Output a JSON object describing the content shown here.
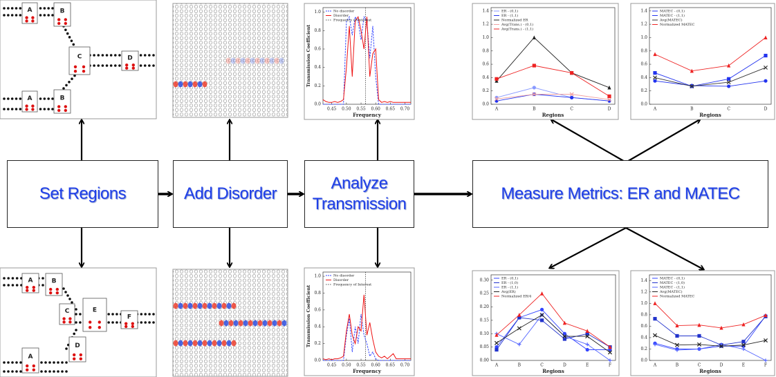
{
  "flow": {
    "boxes": [
      "Set Regions",
      "Add Disorder",
      "Analyze Transmission",
      "Measure Metrics: ER and MATEC"
    ]
  },
  "region_maps": [
    {
      "labels": [
        "A",
        "B",
        "C",
        "D",
        "A",
        "B"
      ]
    },
    {
      "labels": [
        "A",
        "B",
        "C",
        "E",
        "F",
        "A",
        "D"
      ]
    }
  ],
  "charts": [
    {
      "type": "line",
      "y_label": "Transmission Coefficient",
      "x_label": "Frequency",
      "x": [
        0.42,
        0.43,
        0.44,
        0.45,
        0.46,
        0.47,
        0.48,
        0.49,
        0.5,
        0.51,
        0.52,
        0.53,
        0.54,
        0.55,
        0.56,
        0.57,
        0.58,
        0.59,
        0.6,
        0.61,
        0.62,
        0.63,
        0.64,
        0.65,
        0.66,
        0.67,
        0.68,
        0.69,
        0.7,
        0.71,
        0.72
      ],
      "xlim": [
        0.42,
        0.72
      ],
      "xticks": [
        0.45,
        {
          "value": 0.5,
          "label": "0.50"
        },
        0.55,
        {
          "value": 0.6,
          "label": "0.60"
        },
        0.65,
        {
          "value": 0.7,
          "label": "0.70"
        }
      ],
      "ylim": [
        0,
        1.05
      ],
      "yticks": [
        {
          "value": 0,
          "label": "0.0"
        },
        0.2,
        0.4,
        0.6,
        0.8,
        {
          "value": 1,
          "label": "1.0"
        }
      ],
      "frequency_of_interest": 0.565,
      "frequency_label": "Frequency of Interest",
      "series": [
        {
          "name": "No disorder",
          "color": "#3344ff",
          "style": "dashed",
          "values": [
            0,
            0,
            0,
            0,
            0,
            0,
            0,
            0,
            0.9,
            0.95,
            0.75,
            0.95,
            0.9,
            0.7,
            0.95,
            0.9,
            0.5,
            0.85,
            0.3,
            0,
            0,
            0,
            0,
            0,
            0,
            0,
            0,
            0,
            0,
            0,
            0
          ]
        },
        {
          "name": "Disorder",
          "color": "#ee1111",
          "style": "solid",
          "values": [
            0.05,
            0.03,
            0.02,
            0.02,
            0.03,
            0.02,
            0.03,
            0.05,
            0.4,
            0.85,
            0.3,
            0.9,
            0.95,
            0.8,
            0.6,
            0.95,
            0.3,
            0.55,
            0.6,
            0.05,
            0.02,
            0.03,
            0.02,
            0.03,
            0.02,
            0.02,
            0.02,
            0.02,
            0.02,
            0.02,
            0.02
          ]
        }
      ]
    },
    {
      "type": "line",
      "y_label": "Transmission Coefficient",
      "x_label": "Frequency",
      "x": [
        0.42,
        0.43,
        0.44,
        0.45,
        0.46,
        0.47,
        0.48,
        0.49,
        0.5,
        0.51,
        0.52,
        0.53,
        0.54,
        0.55,
        0.56,
        0.57,
        0.58,
        0.59,
        0.6,
        0.61,
        0.62,
        0.63,
        0.64,
        0.65,
        0.66,
        0.67,
        0.68,
        0.69,
        0.7,
        0.71,
        0.72
      ],
      "xlim": [
        0.42,
        0.72
      ],
      "xticks": [
        0.45,
        {
          "value": 0.5,
          "label": "0.50"
        },
        0.55,
        {
          "value": 0.6,
          "label": "0.60"
        },
        0.65,
        {
          "value": 0.7,
          "label": "0.70"
        }
      ],
      "ylim": [
        0,
        1.05
      ],
      "yticks": [
        {
          "value": 0,
          "label": "0.0"
        },
        0.2,
        0.4,
        0.6,
        0.8,
        {
          "value": 1,
          "label": "1.0"
        }
      ],
      "frequency_of_interest": 0.565,
      "frequency_label": "Frequency of Interest",
      "series": [
        {
          "name": "No disorder",
          "color": "#3344ff",
          "style": "dashed",
          "values": [
            0,
            0,
            0,
            0,
            0,
            0,
            0,
            0,
            0.3,
            0.5,
            0.1,
            0.4,
            0.2,
            0.55,
            0.3,
            0.2,
            0.05,
            0.1,
            0.02,
            0,
            0,
            0,
            0,
            0,
            0,
            0,
            0,
            0,
            0,
            0,
            0
          ]
        },
        {
          "name": "Disorder",
          "color": "#ee1111",
          "style": "solid",
          "values": [
            0.02,
            0.01,
            0.02,
            0.01,
            0.02,
            0.02,
            0.03,
            0.05,
            0.35,
            0.55,
            0.3,
            0.2,
            0.4,
            0.35,
            0.78,
            0.3,
            0.45,
            0.25,
            0.1,
            0.05,
            0.03,
            0.05,
            0.02,
            0.05,
            0.08,
            0.02,
            0.02,
            0.02,
            0.02,
            0.02,
            0.02
          ]
        }
      ]
    },
    {
      "type": "line",
      "x_label": "Regions",
      "categories": [
        "A",
        "B",
        "C",
        "D"
      ],
      "ylim": [
        0,
        1.45
      ],
      "yticks": [
        {
          "value": 0,
          "label": "0.0"
        },
        0.2,
        0.4,
        0.6,
        0.8,
        {
          "value": 1,
          "label": "1.0"
        },
        1.2,
        1.4
      ],
      "series": [
        {
          "name": "ER - (0,1)",
          "color": "#8899ff",
          "marker": "circle",
          "values": [
            0.1,
            0.25,
            0.1,
            0.05
          ]
        },
        {
          "name": "ER - (1,1)",
          "color": "#2233ee",
          "marker": "circle",
          "values": [
            0.05,
            0.15,
            0.1,
            0.05
          ]
        },
        {
          "name": "Normalized ER",
          "color": "#222222",
          "marker": "triangle",
          "values": [
            0.35,
            1.0,
            0.47,
            0.25
          ]
        },
        {
          "name": "Avg(Trans.) - (0,1)",
          "color": "#f0a0a0",
          "marker": "x",
          "values": [
            0.08,
            0.15,
            0.15,
            0.07
          ]
        },
        {
          "name": "Avg(Trans.) - (1,1)",
          "color": "#ee2222",
          "marker": "square",
          "values": [
            0.38,
            0.58,
            0.47,
            0.12
          ]
        }
      ]
    },
    {
      "type": "line",
      "x_label": "Regions",
      "categories": [
        "A",
        "B",
        "C",
        "D"
      ],
      "ylim": [
        0,
        1.45
      ],
      "yticks": [
        {
          "value": 0,
          "label": "0.0"
        },
        0.2,
        0.4,
        0.6,
        0.8,
        {
          "value": 1,
          "label": "1.0"
        },
        1.2,
        1.4
      ],
      "series": [
        {
          "name": "MATEC - (0,1)",
          "color": "#2233ee",
          "marker": "circle",
          "values": [
            0.35,
            0.28,
            0.27,
            0.35
          ]
        },
        {
          "name": "MATEC - (1,1)",
          "color": "#2233ee",
          "marker": "square",
          "values": [
            0.47,
            0.27,
            0.38,
            0.73
          ]
        },
        {
          "name": "Avg(MATEC)",
          "color": "#333333",
          "marker": "x",
          "values": [
            0.4,
            0.27,
            0.33,
            0.55
          ]
        },
        {
          "name": "Normalized MATEC",
          "color": "#ee2222",
          "marker": "triangle",
          "values": [
            0.75,
            0.5,
            0.58,
            1.0
          ]
        }
      ]
    },
    {
      "type": "line",
      "x_label": "Regions",
      "categories": [
        "A",
        "B",
        "C",
        "D",
        "E",
        "F"
      ],
      "ylim": [
        0,
        0.32
      ],
      "yticks": [
        {
          "value": 0,
          "label": "0.00"
        },
        {
          "value": 0.05,
          "label": "0.05"
        },
        {
          "value": 0.1,
          "label": "0.10"
        },
        {
          "value": 0.15,
          "label": "0.15"
        },
        {
          "value": 0.2,
          "label": "0.20"
        },
        {
          "value": 0.25,
          "label": "0.25"
        },
        {
          "value": 0.3,
          "label": "0.30"
        }
      ],
      "series": [
        {
          "name": "ER - (0,1)",
          "color": "#3344ff",
          "marker": "circle",
          "values": [
            0.05,
            0.16,
            0.19,
            0.1,
            0.04,
            0.04
          ]
        },
        {
          "name": "ER - (1,0)",
          "color": "#2233cc",
          "marker": "square",
          "values": [
            0.04,
            0.16,
            0.15,
            0.08,
            0.1,
            0.05
          ]
        },
        {
          "name": "ER - (1,1)",
          "color": "#5566ff",
          "marker": "plus",
          "values": [
            0.1,
            0.06,
            0.17,
            0.09,
            0.06,
            0.0
          ]
        },
        {
          "name": "Avg(ER)",
          "color": "#222222",
          "marker": "x",
          "values": [
            0.065,
            0.12,
            0.17,
            0.09,
            0.09,
            0.03
          ]
        },
        {
          "name": "Normalized ER/4",
          "color": "#ee2222",
          "marker": "triangle",
          "values": [
            0.095,
            0.17,
            0.25,
            0.14,
            0.11,
            0.05
          ]
        }
      ]
    },
    {
      "type": "line",
      "x_label": "Regions",
      "categories": [
        "A",
        "B",
        "C",
        "D",
        "E",
        "F"
      ],
      "ylim": [
        0,
        1.5
      ],
      "yticks": [
        {
          "value": 0,
          "label": "0.0"
        },
        0.2,
        0.4,
        0.6,
        0.8,
        {
          "value": 1,
          "label": "1.0"
        },
        1.2,
        1.4
      ],
      "series": [
        {
          "name": "MATEC - (0,1)",
          "color": "#3344ff",
          "marker": "circle",
          "values": [
            0.3,
            0.2,
            0.2,
            0.25,
            0.25,
            0.78
          ]
        },
        {
          "name": "MATEC - (1,0)",
          "color": "#2233cc",
          "marker": "square",
          "values": [
            0.73,
            0.43,
            0.43,
            0.27,
            0.33,
            0.77
          ]
        },
        {
          "name": "MATEC - (1,1)",
          "color": "#5566ff",
          "marker": "plus",
          "values": [
            0.28,
            0.18,
            0.2,
            0.28,
            0.2,
            0.0
          ]
        },
        {
          "name": "Avg(MATEC)",
          "color": "#222222",
          "marker": "x",
          "values": [
            0.44,
            0.27,
            0.28,
            0.25,
            0.27,
            0.35
          ]
        },
        {
          "name": "Normalized MATEC",
          "color": "#ee2222",
          "marker": "triangle",
          "values": [
            1.0,
            0.61,
            0.62,
            0.57,
            0.63,
            0.79
          ]
        }
      ]
    }
  ]
}
